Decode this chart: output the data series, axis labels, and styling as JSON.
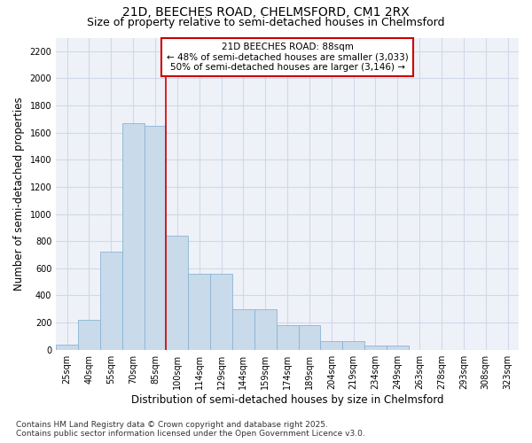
{
  "title_line1": "21D, BEECHES ROAD, CHELMSFORD, CM1 2RX",
  "title_line2": "Size of property relative to semi-detached houses in Chelmsford",
  "xlabel": "Distribution of semi-detached houses by size in Chelmsford",
  "ylabel": "Number of semi-detached properties",
  "categories": [
    "25sqm",
    "40sqm",
    "55sqm",
    "70sqm",
    "85sqm",
    "100sqm",
    "114sqm",
    "129sqm",
    "144sqm",
    "159sqm",
    "174sqm",
    "189sqm",
    "204sqm",
    "219sqm",
    "234sqm",
    "249sqm",
    "263sqm",
    "278sqm",
    "293sqm",
    "308sqm",
    "323sqm"
  ],
  "values": [
    40,
    220,
    725,
    1670,
    1650,
    840,
    560,
    560,
    300,
    300,
    180,
    180,
    65,
    65,
    30,
    30,
    0,
    0,
    0,
    0,
    0
  ],
  "bar_color": "#c9daea",
  "bar_edge_color": "#8ab4d4",
  "vline_color": "#cc0000",
  "annotation_text": "21D BEECHES ROAD: 88sqm\n← 48% of semi-detached houses are smaller (3,033)\n50% of semi-detached houses are larger (3,146) →",
  "annotation_box_color": "white",
  "annotation_box_edge": "#cc0000",
  "ylim_max": 2300,
  "yticks": [
    0,
    200,
    400,
    600,
    800,
    1000,
    1200,
    1400,
    1600,
    1800,
    2000,
    2200
  ],
  "bg_color": "#ffffff",
  "plot_bg_color": "#eef2f8",
  "grid_color": "#d0d8e8",
  "footnote": "Contains HM Land Registry data © Crown copyright and database right 2025.\nContains public sector information licensed under the Open Government Licence v3.0.",
  "title_fontsize": 10,
  "subtitle_fontsize": 9,
  "axis_label_fontsize": 8.5,
  "tick_fontsize": 7,
  "annot_fontsize": 7.5,
  "footnote_fontsize": 6.5
}
